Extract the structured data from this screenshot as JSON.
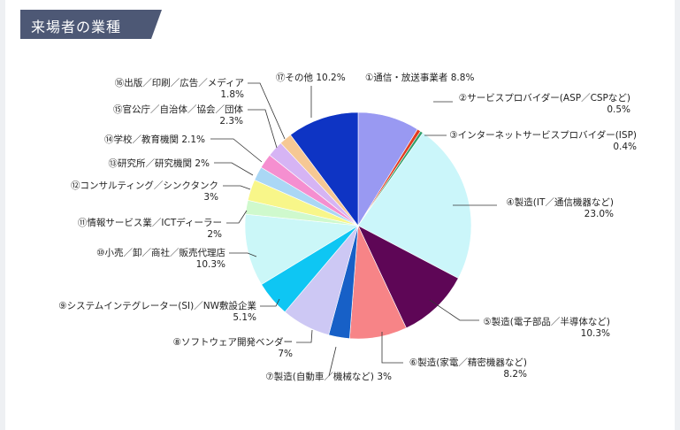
{
  "section_title": "来場者の業種",
  "colors": {
    "title_bg": "#4d5875",
    "leader": "#333333"
  },
  "chart_data": {
    "type": "pie",
    "title": "",
    "start": "12 o'clock",
    "direction": "clockwise",
    "slices": [
      {
        "label": "①通信・放送事業者",
        "value": 8.8,
        "value_text": "8.8%",
        "color": "#9999f2"
      },
      {
        "label": "②サービスプロバイダー(ASP／CSPなど)",
        "value": 0.5,
        "value_text": "0.5%",
        "color": "#e23b1f"
      },
      {
        "label": "③インターネットサービスプロバイダー(ISP)",
        "value": 0.4,
        "value_text": "0.4%",
        "color": "#2f9e6a"
      },
      {
        "label": "④製造(IT／通信機器など)",
        "value": 23.0,
        "value_text": "23.0%",
        "color": "#cbf6fa"
      },
      {
        "label": "⑤製造(電子部品／半導体など)",
        "value": 10.3,
        "value_text": "10.3%",
        "color": "#5e0656"
      },
      {
        "label": "⑥製造(家電／精密機器など)",
        "value": 8.2,
        "value_text": "8.2%",
        "color": "#f78487"
      },
      {
        "label": "⑦製造(自動車／機械など)",
        "value": 3,
        "value_text": "3%",
        "color": "#1760c7"
      },
      {
        "label": "⑧ソフトウェア開発ベンダー",
        "value": 7,
        "value_text": "7%",
        "color": "#cdc8f4"
      },
      {
        "label": "⑨システムインテグレーター(SI)／NW敷設企業",
        "value": 5.1,
        "value_text": "5.1%",
        "color": "#0ec6f3"
      },
      {
        "label": "⑩小売／卸／商社／販売代理店",
        "value": 10.3,
        "value_text": "10.3%",
        "color": "#cbf7f8"
      },
      {
        "label": "⑪情報サービス業／ICTディーラー",
        "value": 2,
        "value_text": "2%",
        "color": "#cff9cd"
      },
      {
        "label": "⑫コンサルティング／シンクタンク",
        "value": 3,
        "value_text": "3%",
        "color": "#f8f689"
      },
      {
        "label": "⑬研究所／研究機関",
        "value": 2,
        "value_text": "2%",
        "color": "#aad7f5"
      },
      {
        "label": "⑭学校／教育機関",
        "value": 2.1,
        "value_text": "2.1%",
        "color": "#f58fd0"
      },
      {
        "label": "⑮官公庁／自治体／協会／団体",
        "value": 2.3,
        "value_text": "2.3%",
        "color": "#d6b4f4"
      },
      {
        "label": "⑯出版／印刷／広告／メディア",
        "value": 1.8,
        "value_text": "1.8%",
        "color": "#f6c894"
      },
      {
        "label": "⑰その他",
        "value": 10.2,
        "value_text": "10.2%",
        "color": "#0e34c4"
      }
    ]
  }
}
